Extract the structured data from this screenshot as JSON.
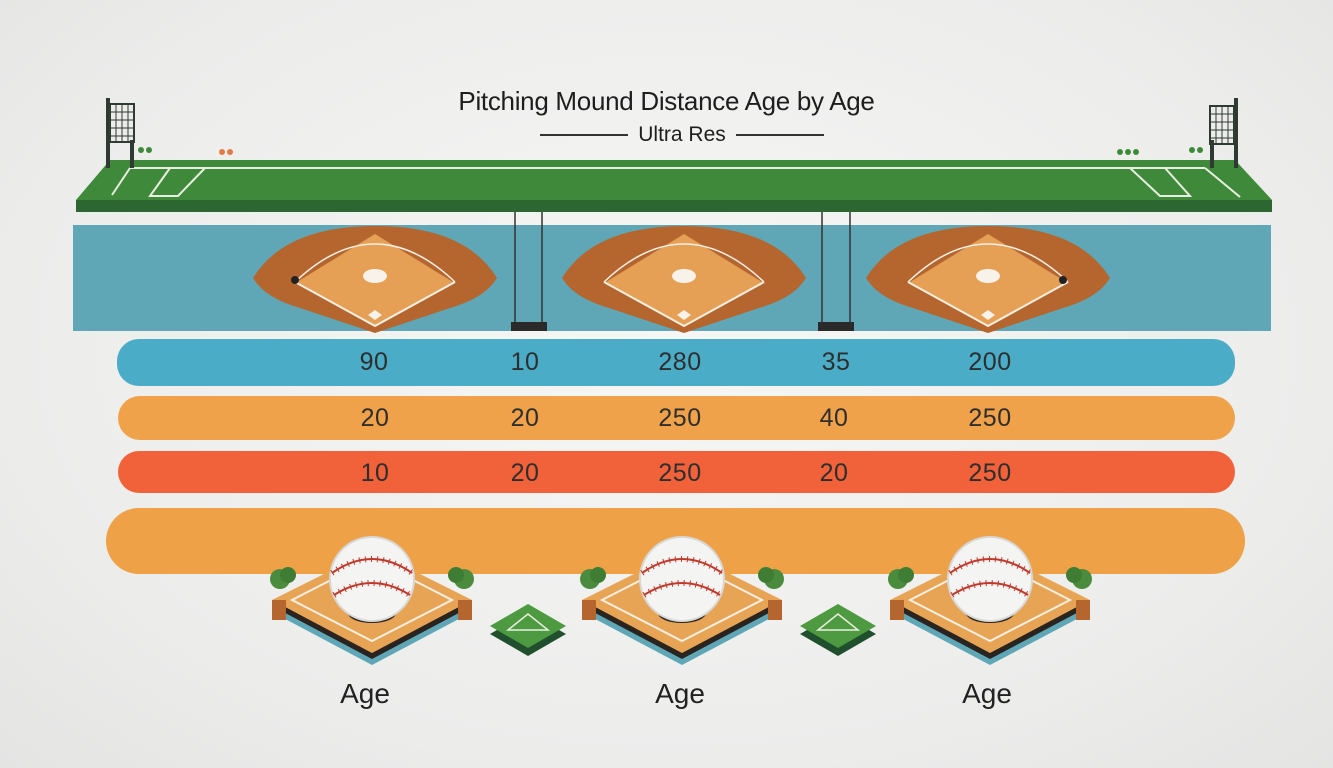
{
  "header": {
    "title": "Pitching Mound Distance Age by Age",
    "subtitle": "Ultra Res"
  },
  "rows": [
    {
      "color": "#4aacc6",
      "values": [
        "90",
        "10",
        "280",
        "35",
        "200"
      ]
    },
    {
      "color": "#f0a24a",
      "values": [
        "20",
        "20",
        "250",
        "40",
        "250"
      ]
    },
    {
      "color": "#f1623b",
      "values": [
        "10",
        "20",
        "250",
        "20",
        "250"
      ]
    }
  ],
  "mounds": [
    {
      "label": "Age"
    },
    {
      "label": "Age"
    },
    {
      "label": "Age"
    }
  ],
  "colors": {
    "grass": "#3f8a3a",
    "water": "#5fa7b6",
    "dirt": "#b5662f",
    "infield": "#e6a055"
  }
}
